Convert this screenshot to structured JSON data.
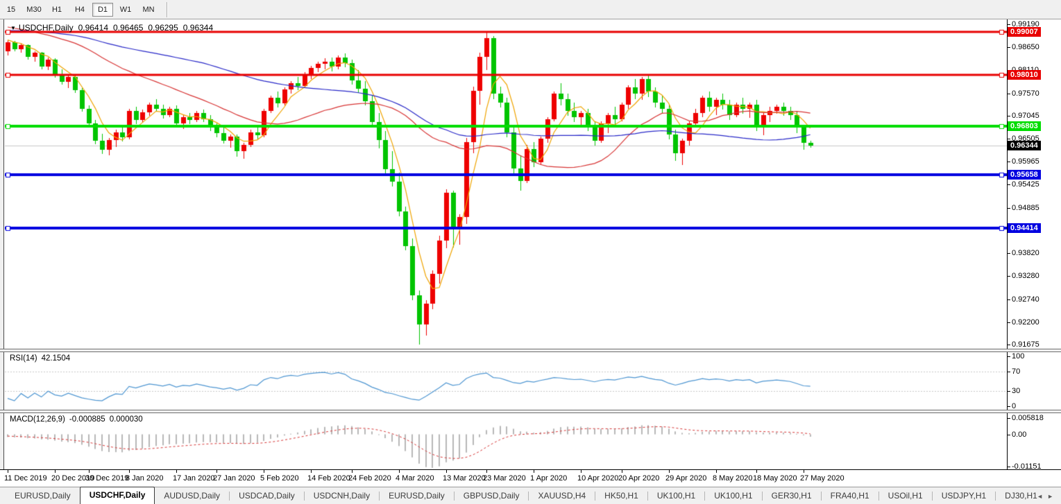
{
  "toolbar": {
    "timeframes": [
      {
        "label": "15",
        "active": false
      },
      {
        "label": "M30",
        "active": false
      },
      {
        "label": "H1",
        "active": false
      },
      {
        "label": "H4",
        "active": false
      },
      {
        "label": "D1",
        "active": true
      },
      {
        "label": "W1",
        "active": false
      },
      {
        "label": "MN",
        "active": false
      }
    ]
  },
  "chart": {
    "title": {
      "marker": "▼",
      "symbol": "USDCHF,Daily",
      "open": "0.96414",
      "high": "0.96465",
      "low": "0.96295",
      "close": "0.96344"
    }
  },
  "rsi_panel": {
    "name": "RSI(14)",
    "value": "42.1504",
    "color": "#4e96d2",
    "axis_ticks": [
      {
        "label": "100",
        "value": 100
      },
      {
        "label": "70",
        "value": 70
      },
      {
        "label": "30",
        "value": 30
      },
      {
        "label": "0",
        "value": 0
      }
    ],
    "dashed_levels": [
      70,
      30
    ]
  },
  "macd_panel": {
    "name": "MACD(12,26,9)",
    "value": "-0.000885",
    "signal_value": "0.000030",
    "histogram_color": "#b8b8b8",
    "signal_color": "#d83434",
    "axis_ticks": [
      {
        "label": "0.005818",
        "value": 0.005818
      },
      {
        "label": "0.00",
        "value": 0
      },
      {
        "label": "-0.01151",
        "value": -0.01151
      }
    ]
  },
  "tabbar": {
    "scroll_left": "◄",
    "scroll_right": "►",
    "tabs": [
      {
        "label": "EURUSD,Daily",
        "active": false
      },
      {
        "label": "USDCHF,Daily",
        "active": true
      },
      {
        "label": "AUDUSD,Daily",
        "active": false
      },
      {
        "label": "USDCAD,Daily",
        "active": false
      },
      {
        "label": "USDCNH,Daily",
        "active": false
      },
      {
        "label": "EURUSD,Daily",
        "active": false
      },
      {
        "label": "GBPUSD,Daily",
        "active": false
      },
      {
        "label": "XAUUSD,H4",
        "active": false
      },
      {
        "label": "HK50,H1",
        "active": false
      },
      {
        "label": "UK100,H1",
        "active": false
      },
      {
        "label": "UK100,H1",
        "active": false
      },
      {
        "label": "GER30,H1",
        "active": false
      },
      {
        "label": "FRA40,H1",
        "active": false
      },
      {
        "label": "USOil,H1",
        "active": false
      },
      {
        "label": "USDJPY,H1",
        "active": false
      },
      {
        "label": "DJ30,H1",
        "active": false
      }
    ]
  },
  "chart_data": {
    "type": "candlestick",
    "symbol": "USDCHF",
    "timeframe": "Daily",
    "up_color": "#ee0000",
    "down_color": "#00c400",
    "ylim": [
      0.91577,
      0.99304
    ],
    "open": [
      0.9856,
      0.9876,
      0.9861,
      0.987,
      0.9842,
      0.9852,
      0.9819,
      0.9836,
      0.98,
      0.9784,
      0.9795,
      0.9764,
      0.972,
      0.9686,
      0.9645,
      0.9624,
      0.9647,
      0.9666,
      0.9654,
      0.9716,
      0.9694,
      0.9713,
      0.9731,
      0.9721,
      0.9706,
      0.9721,
      0.9686,
      0.9701,
      0.9694,
      0.9711,
      0.9696,
      0.9676,
      0.9664,
      0.9646,
      0.9656,
      0.9621,
      0.9636,
      0.9666,
      0.9659,
      0.9716,
      0.9746,
      0.9734,
      0.9766,
      0.9781,
      0.9774,
      0.9801,
      0.9816,
      0.9826,
      0.9831,
      0.9819,
      0.9841,
      0.9828,
      0.9788,
      0.9768,
      0.9739,
      0.9689,
      0.9647,
      0.9579,
      0.9549,
      0.9479,
      0.9399,
      0.9283,
      0.9214,
      0.9264,
      0.9333,
      0.9412,
      0.9523,
      0.9442,
      0.9466,
      0.9643,
      0.9763,
      0.9843,
      0.9886,
      0.9756,
      0.9736,
      0.9666,
      0.9581,
      0.9552,
      0.9627,
      0.9596,
      0.9651,
      0.9696,
      0.9756,
      0.9744,
      0.9716,
      0.9701,
      0.9711,
      0.9681,
      0.9646,
      0.9686,
      0.9706,
      0.9696,
      0.9731,
      0.9771,
      0.9756,
      0.9791,
      0.9761,
      0.9736,
      0.9721,
      0.9661,
      0.9616,
      0.9646,
      0.9686,
      0.9711,
      0.9746,
      0.9726,
      0.9741,
      0.9731,
      0.9706,
      0.9731,
      0.9721,
      0.9731,
      0.9681,
      0.9706,
      0.9716,
      0.9726,
      0.9716,
      0.9706,
      0.9676,
      0.96414
    ],
    "high": [
      0.9881,
      0.988,
      0.9873,
      0.9872,
      0.9856,
      0.9854,
      0.9841,
      0.984,
      0.9813,
      0.9799,
      0.9801,
      0.977,
      0.9729,
      0.9695,
      0.9662,
      0.9652,
      0.9671,
      0.968,
      0.9721,
      0.9726,
      0.9719,
      0.9736,
      0.9743,
      0.9731,
      0.9726,
      0.9729,
      0.9706,
      0.9711,
      0.9716,
      0.9719,
      0.9706,
      0.9686,
      0.9681,
      0.9661,
      0.9661,
      0.9641,
      0.9671,
      0.9681,
      0.9721,
      0.9751,
      0.9761,
      0.9771,
      0.9786,
      0.9796,
      0.9806,
      0.9821,
      0.9831,
      0.9839,
      0.9841,
      0.9846,
      0.9851,
      0.9836,
      0.9811,
      0.9786,
      0.9751,
      0.9711,
      0.9669,
      0.9621,
      0.9571,
      0.9491,
      0.9416,
      0.9294,
      0.9272,
      0.9341,
      0.9423,
      0.9532,
      0.9529,
      0.9473,
      0.9652,
      0.9772,
      0.9852,
      0.99,
      0.9891,
      0.9772,
      0.9746,
      0.9676,
      0.9612,
      0.9636,
      0.9642,
      0.9656,
      0.9701,
      0.9761,
      0.9781,
      0.9756,
      0.9736,
      0.9716,
      0.9721,
      0.9691,
      0.9691,
      0.9711,
      0.9726,
      0.9736,
      0.9776,
      0.9791,
      0.9796,
      0.9798,
      0.9771,
      0.9751,
      0.9731,
      0.9671,
      0.9651,
      0.9691,
      0.9721,
      0.9751,
      0.9761,
      0.9746,
      0.9756,
      0.9741,
      0.9736,
      0.9746,
      0.9736,
      0.9741,
      0.9711,
      0.9726,
      0.9731,
      0.9736,
      0.9726,
      0.9716,
      0.9681,
      0.96465
    ],
    "low": [
      0.9846,
      0.9855,
      0.9852,
      0.9836,
      0.9831,
      0.9813,
      0.9811,
      0.9793,
      0.9778,
      0.9769,
      0.9758,
      0.9714,
      0.9679,
      0.9637,
      0.9614,
      0.9612,
      0.9631,
      0.9644,
      0.9649,
      0.9684,
      0.9688,
      0.9704,
      0.9714,
      0.9697,
      0.9701,
      0.9679,
      0.9674,
      0.9684,
      0.9689,
      0.9689,
      0.9669,
      0.9654,
      0.9639,
      0.9629,
      0.9609,
      0.9604,
      0.9631,
      0.9649,
      0.9654,
      0.9711,
      0.9724,
      0.9729,
      0.9756,
      0.9764,
      0.9769,
      0.9791,
      0.9806,
      0.9814,
      0.9809,
      0.9814,
      0.9818,
      0.9777,
      0.9758,
      0.9728,
      0.9678,
      0.9628,
      0.9566,
      0.9538,
      0.9468,
      0.9388,
      0.9271,
      0.91675,
      0.9189,
      0.9251,
      0.9311,
      0.9393,
      0.9396,
      0.9401,
      0.9451,
      0.9616,
      0.9731,
      0.9812,
      0.9743,
      0.9724,
      0.9654,
      0.9569,
      0.9528,
      0.9546,
      0.9584,
      0.9589,
      0.9641,
      0.9691,
      0.9729,
      0.9704,
      0.9689,
      0.9679,
      0.9669,
      0.9634,
      0.9641,
      0.9664,
      0.9684,
      0.9691,
      0.9721,
      0.9744,
      0.9741,
      0.9749,
      0.9724,
      0.9709,
      0.9649,
      0.9599,
      0.9589,
      0.9634,
      0.9676,
      0.9701,
      0.9714,
      0.9706,
      0.9719,
      0.9694,
      0.9701,
      0.9709,
      0.9699,
      0.9669,
      0.9659,
      0.9689,
      0.9709,
      0.9704,
      0.9694,
      0.9664,
      0.9624,
      0.96295
    ],
    "close": [
      0.9876,
      0.9861,
      0.987,
      0.9842,
      0.9852,
      0.9819,
      0.9836,
      0.98,
      0.9784,
      0.9795,
      0.9764,
      0.972,
      0.9686,
      0.9645,
      0.9624,
      0.9647,
      0.9666,
      0.9654,
      0.9716,
      0.9694,
      0.9713,
      0.9731,
      0.9721,
      0.9706,
      0.9721,
      0.9686,
      0.9701,
      0.9694,
      0.9711,
      0.9696,
      0.9676,
      0.9664,
      0.9646,
      0.9656,
      0.9621,
      0.9636,
      0.9666,
      0.9659,
      0.9716,
      0.9746,
      0.9734,
      0.9766,
      0.9781,
      0.9774,
      0.9801,
      0.9816,
      0.9826,
      0.9831,
      0.9819,
      0.9841,
      0.9828,
      0.9788,
      0.9768,
      0.9739,
      0.9689,
      0.9647,
      0.9579,
      0.9549,
      0.9479,
      0.9399,
      0.9283,
      0.9214,
      0.9264,
      0.9333,
      0.9412,
      0.9523,
      0.9442,
      0.9466,
      0.9643,
      0.9763,
      0.9843,
      0.9886,
      0.9756,
      0.9736,
      0.9666,
      0.9581,
      0.9552,
      0.9627,
      0.9596,
      0.9651,
      0.9696,
      0.9756,
      0.9744,
      0.9716,
      0.9701,
      0.9711,
      0.9681,
      0.9646,
      0.9686,
      0.9706,
      0.9696,
      0.9731,
      0.9771,
      0.9756,
      0.9791,
      0.9761,
      0.9736,
      0.9721,
      0.9661,
      0.9616,
      0.9646,
      0.9686,
      0.9711,
      0.9746,
      0.9726,
      0.9741,
      0.9731,
      0.9706,
      0.9731,
      0.9721,
      0.9731,
      0.9681,
      0.9706,
      0.9716,
      0.9726,
      0.9716,
      0.9706,
      0.9676,
      0.9641,
      0.96344
    ],
    "price_ticks": [
      {
        "label": "0.99190",
        "value": 0.9919
      },
      {
        "label": "0.98650",
        "value": 0.9865
      },
      {
        "label": "0.98110",
        "value": 0.9811
      },
      {
        "label": "0.97570",
        "value": 0.9757
      },
      {
        "label": "0.97045",
        "value": 0.97045
      },
      {
        "label": "0.96505",
        "value": 0.96505
      },
      {
        "label": "0.95965",
        "value": 0.95965
      },
      {
        "label": "0.95425",
        "value": 0.95425
      },
      {
        "label": "0.94885",
        "value": 0.94885
      },
      {
        "label": "0.94360",
        "value": 0.9436
      },
      {
        "label": "0.93820",
        "value": 0.9382
      },
      {
        "label": "0.93280",
        "value": 0.9328
      },
      {
        "label": "0.92740",
        "value": 0.9274
      },
      {
        "label": "0.92200",
        "value": 0.922
      },
      {
        "label": "0.91675",
        "value": 0.91675
      }
    ],
    "date_ticks": [
      {
        "index": 0,
        "label": "11 Dec 2019"
      },
      {
        "index": 7,
        "label": "20 Dec 2019"
      },
      {
        "index": 12,
        "label": "30 Dec 2019"
      },
      {
        "index": 18,
        "label": "8 Jan 2020"
      },
      {
        "index": 25,
        "label": "17 Jan 2020"
      },
      {
        "index": 31,
        "label": "27 Jan 2020"
      },
      {
        "index": 38,
        "label": "5 Feb 2020"
      },
      {
        "index": 45,
        "label": "14 Feb 2020"
      },
      {
        "index": 51,
        "label": "24 Feb 2020"
      },
      {
        "index": 58,
        "label": "4 Mar 2020"
      },
      {
        "index": 65,
        "label": "13 Mar 2020"
      },
      {
        "index": 71,
        "label": "23 Mar 2020"
      },
      {
        "index": 78,
        "label": "1 Apr 2020"
      },
      {
        "index": 85,
        "label": "10 Apr 2020"
      },
      {
        "index": 91,
        "label": "20 Apr 2020"
      },
      {
        "index": 98,
        "label": "29 Apr 2020"
      },
      {
        "index": 105,
        "label": "8 May 2020"
      },
      {
        "index": 111,
        "label": "18 May 2020"
      },
      {
        "index": 118,
        "label": "27 May 2020"
      }
    ],
    "hlines": [
      {
        "value": 0.99007,
        "label": "0.99007",
        "color": "#e80000",
        "width": 3
      },
      {
        "value": 0.9801,
        "label": "0.98010",
        "color": "#e80000",
        "width": 3
      },
      {
        "value": 0.96803,
        "label": "0.96803",
        "color": "#00dd00",
        "width": 4
      },
      {
        "value": 0.95658,
        "label": "0.95658",
        "color": "#0000e0",
        "width": 4
      },
      {
        "value": 0.94414,
        "label": "0.94414",
        "color": "#0000e0",
        "width": 4
      }
    ],
    "current_price": {
      "value": 0.96344,
      "label": "0.96344",
      "line_color": "#c8c8c8",
      "badge_color": "#000000"
    },
    "moving_averages": [
      {
        "name": "fast",
        "period": 5,
        "color": "#f0a400"
      },
      {
        "name": "mid",
        "period": 30,
        "color": "#d83434"
      },
      {
        "name": "slow",
        "period": 60,
        "color": "#2828c8"
      }
    ],
    "rsi": {
      "period": 14,
      "current": 42.1504
    },
    "macd": {
      "fast": 12,
      "slow": 26,
      "signal": 9,
      "current": -0.000885,
      "current_signal": 3e-05
    }
  }
}
